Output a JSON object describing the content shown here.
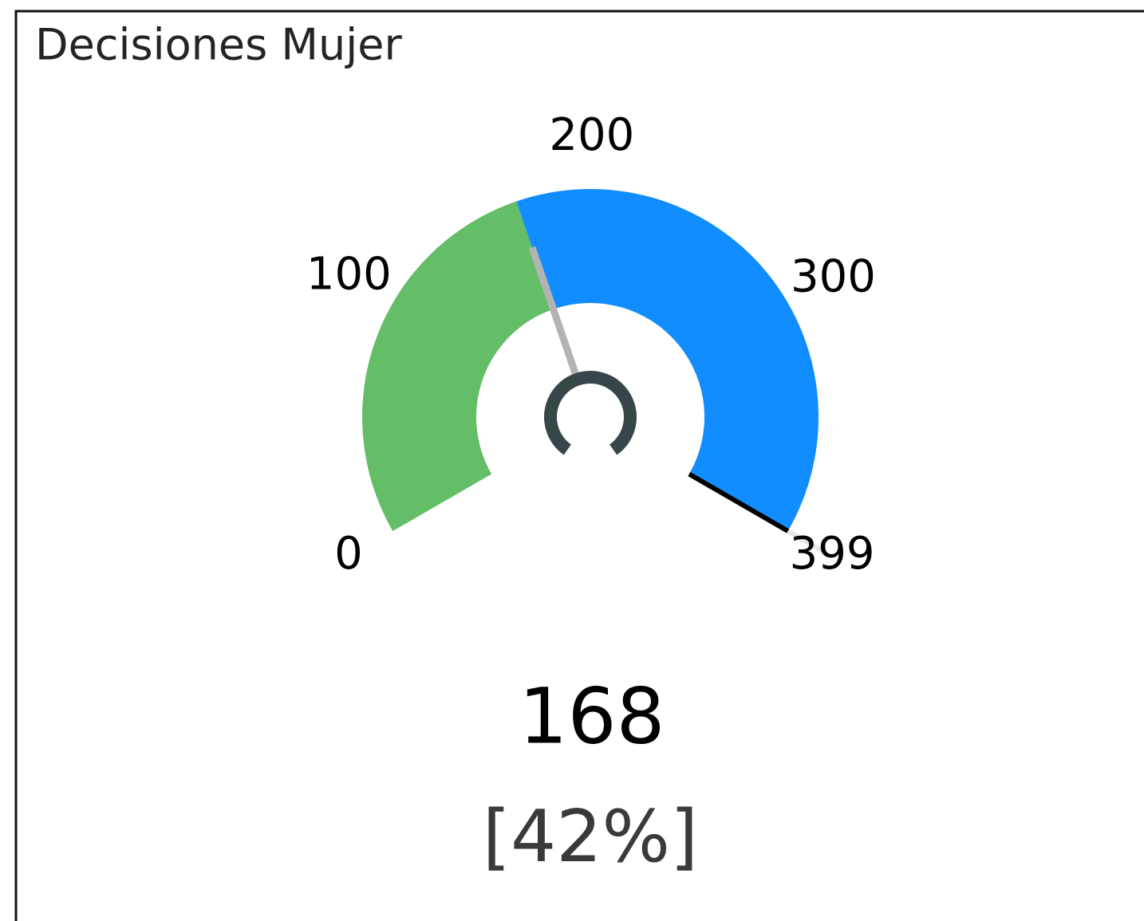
{
  "chart_data": {
    "type": "gauge",
    "title": "Decisiones Mujer",
    "value": 168,
    "range": [
      0,
      399
    ],
    "ticks": [
      0,
      100,
      200,
      300,
      399
    ],
    "percent_label": "[42%]",
    "fill_color": "#63be67",
    "remainder_color": "#118dff",
    "needle_color": "#b3b3b3"
  }
}
